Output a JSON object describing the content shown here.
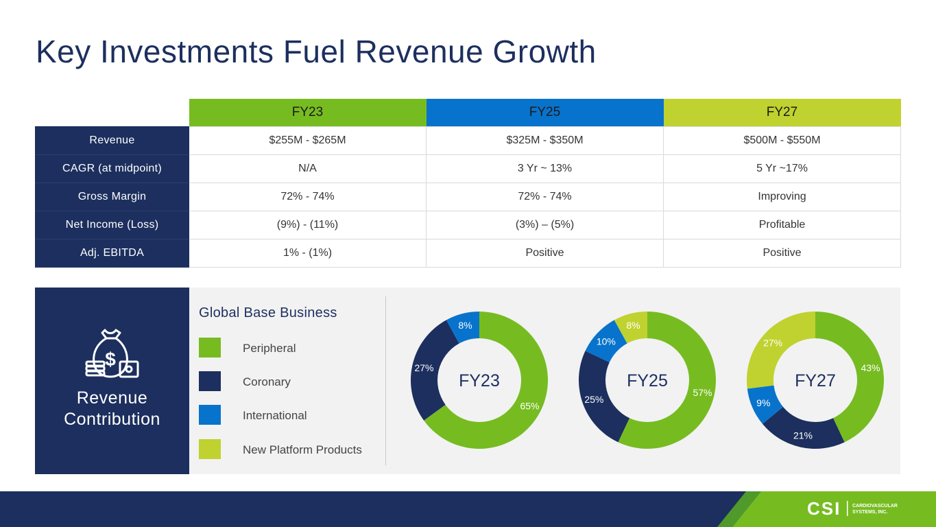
{
  "title": "Key Investments Fuel Revenue Growth",
  "table": {
    "years": [
      {
        "label": "FY23",
        "color": "#76bc21"
      },
      {
        "label": "FY25",
        "color": "#0873cc"
      },
      {
        "label": "FY27",
        "color": "#bfd22f"
      }
    ],
    "rows": [
      {
        "label": "Revenue",
        "values": [
          "$255M - $265M",
          "$325M - $350M",
          "$500M - $550M"
        ]
      },
      {
        "label": "CAGR (at midpoint)",
        "values": [
          "N/A",
          "3 Yr ~ 13%",
          "5 Yr ~17%"
        ]
      },
      {
        "label": "Gross Margin",
        "values": [
          "72% - 74%",
          "72% - 74%",
          "Improving"
        ]
      },
      {
        "label": "Net Income (Loss)",
        "values": [
          "(9%) - (11%)",
          "(3%) – (5%)",
          "Profitable"
        ]
      },
      {
        "label": "Adj. EBITDA",
        "values": [
          "1% - (1%)",
          "Positive",
          "Positive"
        ]
      }
    ]
  },
  "panel": {
    "title": "Revenue Contribution",
    "legend_title": "Global Base Business",
    "legend": [
      {
        "label": "Peripheral",
        "color": "#76bc21"
      },
      {
        "label": "Coronary",
        "color": "#1c2f5e"
      },
      {
        "label": "International",
        "color": "#0873cc"
      },
      {
        "label": "New Platform Products",
        "color": "#bfd22f"
      }
    ]
  },
  "chart_data": [
    {
      "type": "pie",
      "title": "FY23",
      "categories": [
        "Peripheral",
        "Coronary",
        "International",
        "New Platform Products"
      ],
      "values": [
        65,
        27,
        8,
        0
      ],
      "labels": [
        "65%",
        "27%",
        "8%",
        ""
      ]
    },
    {
      "type": "pie",
      "title": "FY25",
      "categories": [
        "Peripheral",
        "Coronary",
        "International",
        "New Platform Products"
      ],
      "values": [
        57,
        25,
        10,
        8
      ],
      "labels": [
        "57%",
        "25%",
        "10%",
        "8%"
      ]
    },
    {
      "type": "pie",
      "title": "FY27",
      "categories": [
        "Peripheral",
        "Coronary",
        "International",
        "New Platform Products"
      ],
      "values": [
        43,
        21,
        9,
        27
      ],
      "labels": [
        "43%",
        "21%",
        "9%",
        "27%"
      ]
    }
  ],
  "footer": {
    "logo_text": "CSI",
    "company_line1": "CARDIOVASCULAR",
    "company_line2": "SYSTEMS, INC.",
    "bar_color": "#1c2f5e",
    "accent_color": "#76bc21"
  }
}
